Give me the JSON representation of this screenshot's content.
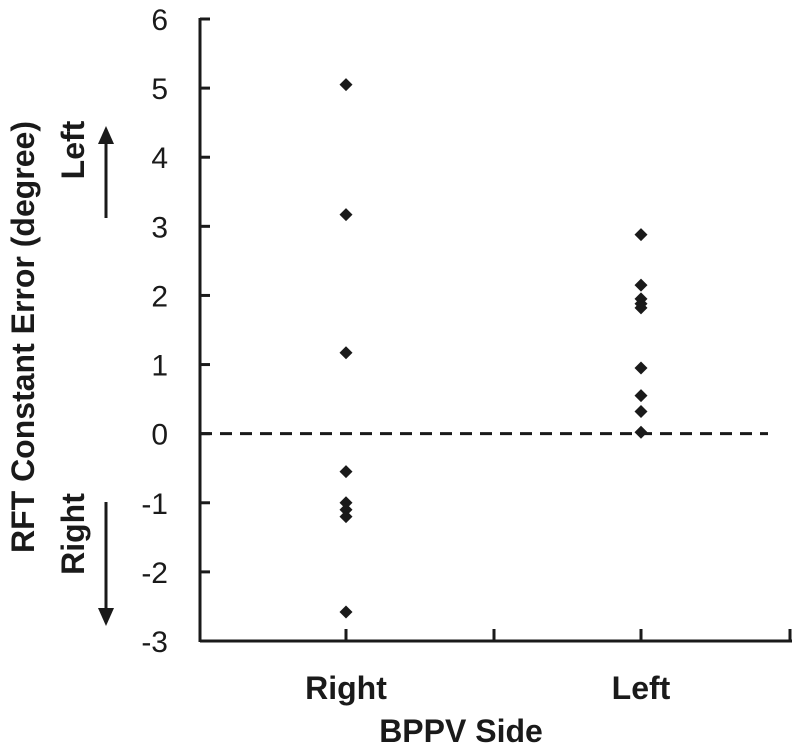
{
  "chart_data": {
    "type": "scatter",
    "xlabel": "BPPV Side",
    "ylabel": "RFT Constant Error (degree)",
    "categories": [
      "Right",
      "Left"
    ],
    "ylim": [
      -3,
      6
    ],
    "yticks": [
      6,
      5,
      4,
      3,
      2,
      1,
      0,
      -1,
      -2,
      -3
    ],
    "reference_line": {
      "y": 0,
      "style": "dashed"
    },
    "direction_labels": {
      "up": "Left",
      "down": "Right"
    },
    "grid": false,
    "legend": "none",
    "marker": "diamond",
    "marker_color": "#1a1a1a",
    "series": [
      {
        "category": "Right",
        "values": [
          5.05,
          3.17,
          1.17,
          -0.55,
          -1.0,
          -1.1,
          -1.2,
          -2.58
        ]
      },
      {
        "category": "Left",
        "values": [
          2.88,
          2.15,
          1.95,
          1.88,
          1.82,
          0.95,
          0.55,
          0.32,
          0.02
        ]
      }
    ]
  }
}
